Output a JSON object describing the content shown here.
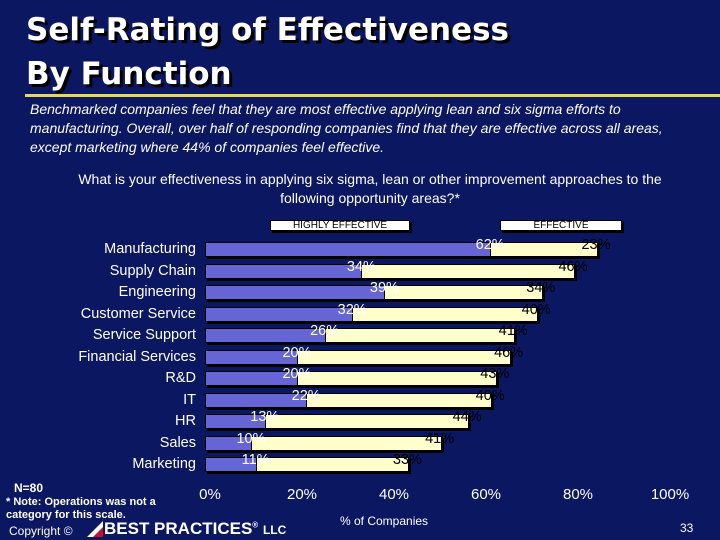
{
  "title_line1": "Self-Rating of Effectiveness",
  "title_line2": "By Function",
  "subtitle": "Benchmarked companies feel that they are most effective applying lean and six sigma efforts to manufacturing. Overall, over half of responding companies find that they are effective across all areas, except marketing where 44% of companies feel effective.",
  "question": "What is your effectiveness in applying six sigma, lean or other improvement approaches to the following opportunity areas?*",
  "footer": {
    "n": "N=80",
    "note": "* Note: Operations was not a category for this scale.",
    "copyright": "Copyright ©",
    "brand": "BEST PRACTICES",
    "brand_suffix": "LLC",
    "page": "33"
  },
  "colors": {
    "background": "#0b1761",
    "highly_effective": "#6565d5",
    "effective": "#ffffcc",
    "rule": "#e8d85a"
  },
  "chart_data": {
    "type": "bar",
    "orientation": "horizontal",
    "stacked": true,
    "legend_placement": "top",
    "xlabel": "% of Companies",
    "xlim": [
      0,
      100
    ],
    "xticks": [
      "0%",
      "20%",
      "40%",
      "60%",
      "80%",
      "100%"
    ],
    "categories": [
      "Manufacturing",
      "Supply Chain",
      "Engineering",
      "Customer Service",
      "Service Support",
      "Financial Services",
      "R&D",
      "IT",
      "HR",
      "Sales",
      "Marketing"
    ],
    "series": [
      {
        "name": "HIGHLY EFFECTIVE",
        "values": [
          62,
          34,
          39,
          32,
          26,
          20,
          20,
          22,
          13,
          10,
          11
        ],
        "labels": [
          "62%",
          "34%",
          "39%",
          "32%",
          "26%",
          "20%",
          "20%",
          "22%",
          "13%",
          "10%",
          "11%"
        ]
      },
      {
        "name": "EFFECTIVE",
        "values": [
          23,
          46,
          34,
          40,
          41,
          46,
          43,
          40,
          44,
          41,
          33
        ],
        "labels": [
          "23%",
          "46%",
          "34%",
          "40%",
          "41%",
          "46%",
          "43%",
          "40%",
          "44%",
          "41%",
          "33%"
        ]
      }
    ]
  }
}
